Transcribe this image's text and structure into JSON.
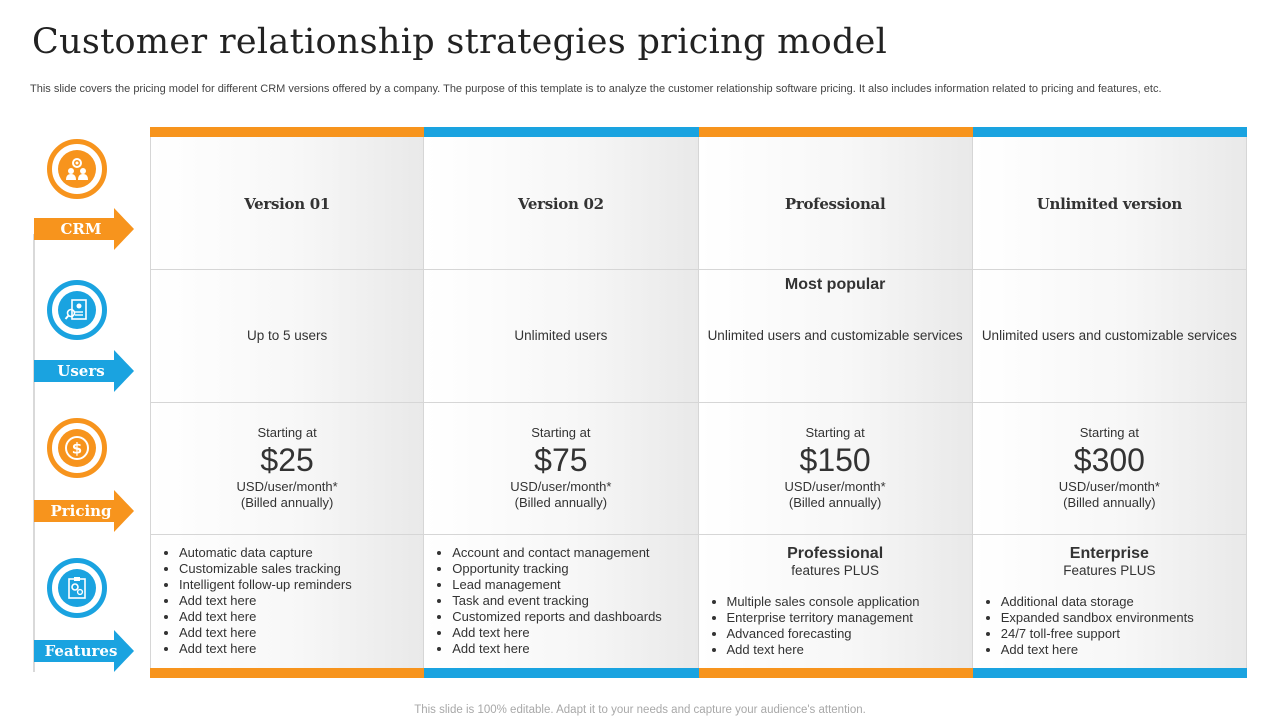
{
  "page": {
    "title": "Customer relationship strategies pricing model",
    "subtitle": "This slide covers the pricing model for different CRM versions offered by a company. The purpose of this template is to analyze the customer relationship software pricing. It also includes information related to pricing and features, etc.",
    "footer": "This slide is 100% editable. Adapt it to your needs and capture your audience's attention."
  },
  "colors": {
    "orange": "#f7941d",
    "blue": "#1aa3e0"
  },
  "sidebar": {
    "rows": [
      {
        "label": "CRM",
        "icon": "team-gear-icon",
        "color": "orange"
      },
      {
        "label": "Users",
        "icon": "user-profile-clipboard-icon",
        "color": "blue"
      },
      {
        "label": "Pricing",
        "icon": "dollar-coin-icon",
        "color": "orange"
      },
      {
        "label": "Features",
        "icon": "features-clipboard-icon",
        "color": "blue"
      }
    ]
  },
  "plans": [
    {
      "name": "Version 01",
      "users": "Up to 5 users",
      "popular": "",
      "price": {
        "starting": "Starting at",
        "amount": "$25",
        "per": "USD/user/month*",
        "billing": "(Billed annually)"
      },
      "features_title": "",
      "features_sub": "",
      "features": [
        "Automatic data capture",
        "Customizable sales tracking",
        "Intelligent follow-up reminders",
        "Add text here",
        "Add text here",
        "Add text here",
        "Add text here"
      ]
    },
    {
      "name": "Version 02",
      "users": "Unlimited users",
      "popular": "",
      "price": {
        "starting": "Starting at",
        "amount": "$75",
        "per": "USD/user/month*",
        "billing": "(Billed annually)"
      },
      "features_title": "",
      "features_sub": "",
      "features": [
        "Account and contact management",
        "Opportunity tracking",
        "Lead management",
        "Task and event tracking",
        "Customized reports and dashboards",
        "Add text here",
        "Add text here"
      ]
    },
    {
      "name": "Professional",
      "users": "Unlimited users and customizable services",
      "popular": "Most popular",
      "price": {
        "starting": "Starting at",
        "amount": "$150",
        "per": "USD/user/month*",
        "billing": "(Billed annually)"
      },
      "features_title": "Professional",
      "features_sub": "features PLUS",
      "features": [
        "Multiple sales console application",
        "Enterprise territory management",
        "Advanced forecasting",
        "Add text here"
      ]
    },
    {
      "name": "Unlimited version",
      "users": "Unlimited users and customizable services",
      "popular": "",
      "price": {
        "starting": "Starting at",
        "amount": "$300",
        "per": "USD/user/month*",
        "billing": "(Billed annually)"
      },
      "features_title": "Enterprise",
      "features_sub": "Features PLUS",
      "features": [
        "Additional data storage",
        "Expanded sandbox environments",
        "24/7 toll-free support",
        "Add text here"
      ]
    }
  ]
}
